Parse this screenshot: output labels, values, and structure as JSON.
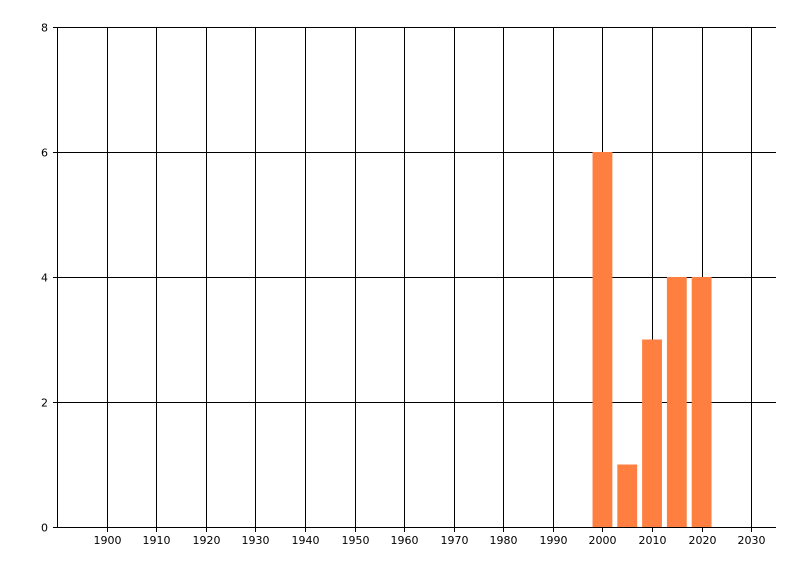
{
  "chart_data": {
    "type": "bar",
    "title": "",
    "xlabel": "",
    "ylabel": "",
    "x": [
      2000,
      2005,
      2010,
      2015,
      2020
    ],
    "values": [
      6,
      1,
      3,
      4,
      4
    ],
    "bar_width_years": 4,
    "xlim": [
      1890,
      2035
    ],
    "ylim": [
      0,
      8
    ],
    "x_ticks": [
      1900,
      1910,
      1920,
      1930,
      1940,
      1950,
      1960,
      1970,
      1980,
      1990,
      2000,
      2010,
      2020,
      2030
    ],
    "y_ticks": [
      0,
      2,
      4,
      6,
      8
    ],
    "grid": true,
    "bar_color": "#FF7F40"
  }
}
